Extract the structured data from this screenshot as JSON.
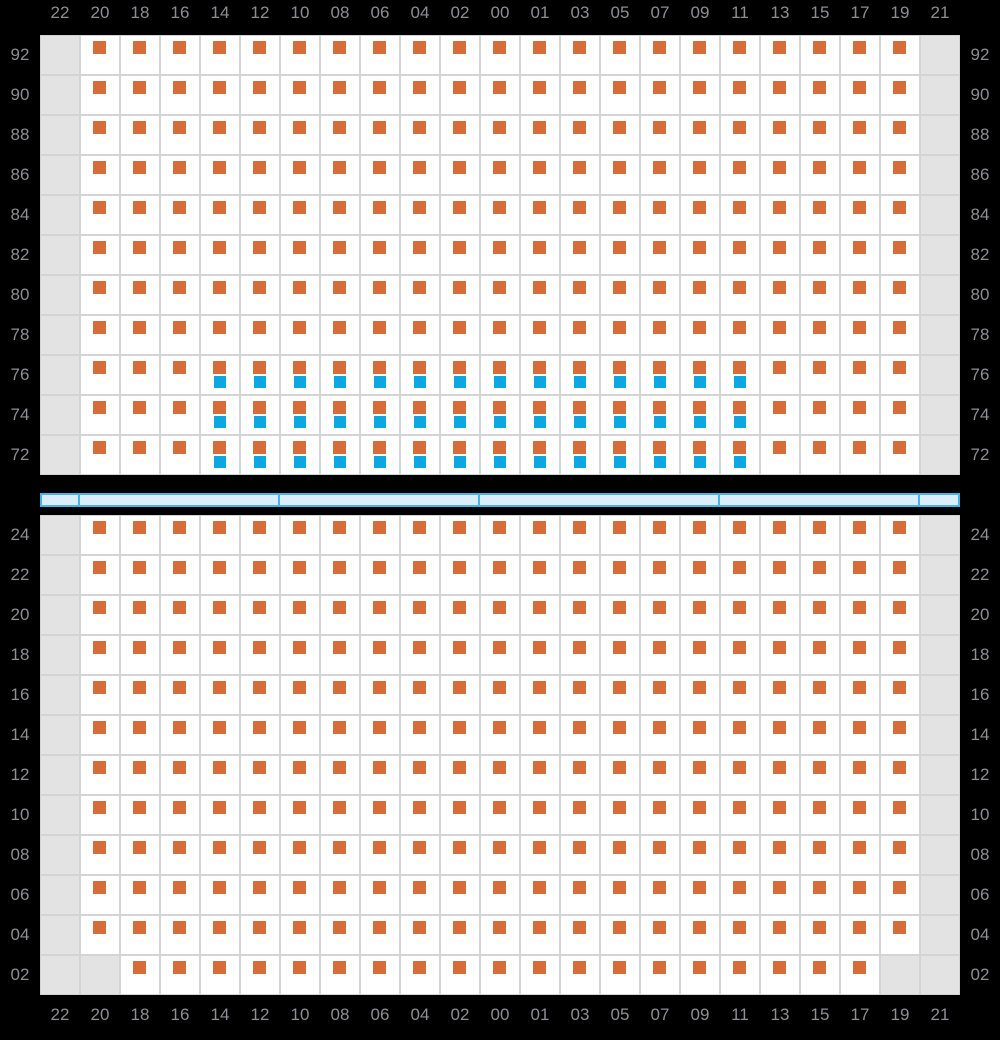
{
  "palette": {
    "background": "#000000",
    "cell_bg": "#ffffff",
    "cell_empty_bg": "#e3e3e3",
    "cell_border": "#d4d4d4",
    "label_color": "#8e8e93",
    "orange": "#d86c38",
    "cyan": "#0aa7e2",
    "bar_fill": "#dbedf9",
    "bar_border": "#44b5e9"
  },
  "columns": [
    "22",
    "20",
    "18",
    "16",
    "14",
    "12",
    "10",
    "08",
    "06",
    "04",
    "02",
    "00",
    "01",
    "03",
    "05",
    "07",
    "09",
    "11",
    "13",
    "15",
    "17",
    "19",
    "21"
  ],
  "top_section": {
    "rows": [
      {
        "label": "92",
        "cells": [
          "g",
          "o",
          "o",
          "o",
          "o",
          "o",
          "o",
          "o",
          "o",
          "o",
          "o",
          "o",
          "o",
          "o",
          "o",
          "o",
          "o",
          "o",
          "o",
          "o",
          "o",
          "o",
          "g"
        ]
      },
      {
        "label": "90",
        "cells": [
          "g",
          "o",
          "o",
          "o",
          "o",
          "o",
          "o",
          "o",
          "o",
          "o",
          "o",
          "o",
          "o",
          "o",
          "o",
          "o",
          "o",
          "o",
          "o",
          "o",
          "o",
          "o",
          "g"
        ]
      },
      {
        "label": "88",
        "cells": [
          "g",
          "o",
          "o",
          "o",
          "o",
          "o",
          "o",
          "o",
          "o",
          "o",
          "o",
          "o",
          "o",
          "o",
          "o",
          "o",
          "o",
          "o",
          "o",
          "o",
          "o",
          "o",
          "g"
        ]
      },
      {
        "label": "86",
        "cells": [
          "g",
          "o",
          "o",
          "o",
          "o",
          "o",
          "o",
          "o",
          "o",
          "o",
          "o",
          "o",
          "o",
          "o",
          "o",
          "o",
          "o",
          "o",
          "o",
          "o",
          "o",
          "o",
          "g"
        ]
      },
      {
        "label": "84",
        "cells": [
          "g",
          "o",
          "o",
          "o",
          "o",
          "o",
          "o",
          "o",
          "o",
          "o",
          "o",
          "o",
          "o",
          "o",
          "o",
          "o",
          "o",
          "o",
          "o",
          "o",
          "o",
          "o",
          "g"
        ]
      },
      {
        "label": "82",
        "cells": [
          "g",
          "o",
          "o",
          "o",
          "o",
          "o",
          "o",
          "o",
          "o",
          "o",
          "o",
          "o",
          "o",
          "o",
          "o",
          "o",
          "o",
          "o",
          "o",
          "o",
          "o",
          "o",
          "g"
        ]
      },
      {
        "label": "80",
        "cells": [
          "g",
          "o",
          "o",
          "o",
          "o",
          "o",
          "o",
          "o",
          "o",
          "o",
          "o",
          "o",
          "o",
          "o",
          "o",
          "o",
          "o",
          "o",
          "o",
          "o",
          "o",
          "o",
          "g"
        ]
      },
      {
        "label": "78",
        "cells": [
          "g",
          "o",
          "o",
          "o",
          "o",
          "o",
          "o",
          "o",
          "o",
          "o",
          "o",
          "o",
          "o",
          "o",
          "o",
          "o",
          "o",
          "o",
          "o",
          "o",
          "o",
          "o",
          "g"
        ]
      },
      {
        "label": "76",
        "cells": [
          "g",
          "o",
          "o",
          "o",
          "oc",
          "oc",
          "oc",
          "oc",
          "oc",
          "oc",
          "oc",
          "oc",
          "oc",
          "oc",
          "oc",
          "oc",
          "oc",
          "oc",
          "o",
          "o",
          "o",
          "o",
          "g"
        ]
      },
      {
        "label": "74",
        "cells": [
          "g",
          "o",
          "o",
          "o",
          "oc",
          "oc",
          "oc",
          "oc",
          "oc",
          "oc",
          "oc",
          "oc",
          "oc",
          "oc",
          "oc",
          "oc",
          "oc",
          "oc",
          "o",
          "o",
          "o",
          "o",
          "g"
        ]
      },
      {
        "label": "72",
        "cells": [
          "g",
          "o",
          "o",
          "o",
          "oc",
          "oc",
          "oc",
          "oc",
          "oc",
          "oc",
          "oc",
          "oc",
          "oc",
          "oc",
          "oc",
          "oc",
          "oc",
          "oc",
          "o",
          "o",
          "o",
          "o",
          "g"
        ]
      }
    ]
  },
  "divider_bar": {
    "segment_widths": [
      40,
      200,
      200,
      240,
      200,
      40
    ]
  },
  "bottom_section": {
    "rows": [
      {
        "label": "24",
        "cells": [
          "g",
          "o",
          "o",
          "o",
          "o",
          "o",
          "o",
          "o",
          "o",
          "o",
          "o",
          "o",
          "o",
          "o",
          "o",
          "o",
          "o",
          "o",
          "o",
          "o",
          "o",
          "o",
          "g"
        ]
      },
      {
        "label": "22",
        "cells": [
          "g",
          "o",
          "o",
          "o",
          "o",
          "o",
          "o",
          "o",
          "o",
          "o",
          "o",
          "o",
          "o",
          "o",
          "o",
          "o",
          "o",
          "o",
          "o",
          "o",
          "o",
          "o",
          "g"
        ]
      },
      {
        "label": "20",
        "cells": [
          "g",
          "o",
          "o",
          "o",
          "o",
          "o",
          "o",
          "o",
          "o",
          "o",
          "o",
          "o",
          "o",
          "o",
          "o",
          "o",
          "o",
          "o",
          "o",
          "o",
          "o",
          "o",
          "g"
        ]
      },
      {
        "label": "18",
        "cells": [
          "g",
          "o",
          "o",
          "o",
          "o",
          "o",
          "o",
          "o",
          "o",
          "o",
          "o",
          "o",
          "o",
          "o",
          "o",
          "o",
          "o",
          "o",
          "o",
          "o",
          "o",
          "o",
          "g"
        ]
      },
      {
        "label": "16",
        "cells": [
          "g",
          "o",
          "o",
          "o",
          "o",
          "o",
          "o",
          "o",
          "o",
          "o",
          "o",
          "o",
          "o",
          "o",
          "o",
          "o",
          "o",
          "o",
          "o",
          "o",
          "o",
          "o",
          "g"
        ]
      },
      {
        "label": "14",
        "cells": [
          "g",
          "o",
          "o",
          "o",
          "o",
          "o",
          "o",
          "o",
          "o",
          "o",
          "o",
          "o",
          "o",
          "o",
          "o",
          "o",
          "o",
          "o",
          "o",
          "o",
          "o",
          "o",
          "g"
        ]
      },
      {
        "label": "12",
        "cells": [
          "g",
          "o",
          "o",
          "o",
          "o",
          "o",
          "o",
          "o",
          "o",
          "o",
          "o",
          "o",
          "o",
          "o",
          "o",
          "o",
          "o",
          "o",
          "o",
          "o",
          "o",
          "o",
          "g"
        ]
      },
      {
        "label": "10",
        "cells": [
          "g",
          "o",
          "o",
          "o",
          "o",
          "o",
          "o",
          "o",
          "o",
          "o",
          "o",
          "o",
          "o",
          "o",
          "o",
          "o",
          "o",
          "o",
          "o",
          "o",
          "o",
          "o",
          "g"
        ]
      },
      {
        "label": "08",
        "cells": [
          "g",
          "o",
          "o",
          "o",
          "o",
          "o",
          "o",
          "o",
          "o",
          "o",
          "o",
          "o",
          "o",
          "o",
          "o",
          "o",
          "o",
          "o",
          "o",
          "o",
          "o",
          "o",
          "g"
        ]
      },
      {
        "label": "06",
        "cells": [
          "g",
          "o",
          "o",
          "o",
          "o",
          "o",
          "o",
          "o",
          "o",
          "o",
          "o",
          "o",
          "o",
          "o",
          "o",
          "o",
          "o",
          "o",
          "o",
          "o",
          "o",
          "o",
          "g"
        ]
      },
      {
        "label": "04",
        "cells": [
          "g",
          "o",
          "o",
          "o",
          "o",
          "o",
          "o",
          "o",
          "o",
          "o",
          "o",
          "o",
          "o",
          "o",
          "o",
          "o",
          "o",
          "o",
          "o",
          "o",
          "o",
          "o",
          "g"
        ]
      },
      {
        "label": "02",
        "cells": [
          "g",
          "g",
          "o",
          "o",
          "o",
          "o",
          "o",
          "o",
          "o",
          "o",
          "o",
          "o",
          "o",
          "o",
          "o",
          "o",
          "o",
          "o",
          "o",
          "o",
          "o",
          "g",
          "g"
        ]
      }
    ]
  }
}
